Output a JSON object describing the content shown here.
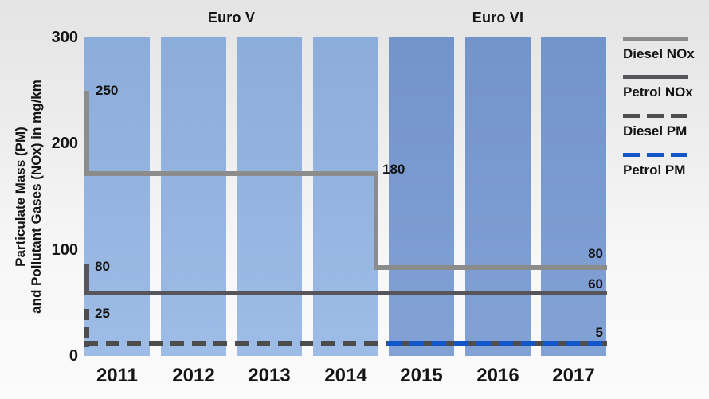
{
  "era_titles": {
    "euro_v": "Euro V",
    "euro_vi": "Euro VI"
  },
  "y_axis": {
    "label_line1": "Particulate Mass (PM)",
    "label_line2": "and Pollutant Gases (NOx) in mg/km",
    "ticks": [
      "300",
      "200",
      "100",
      "0"
    ]
  },
  "x_axis": {
    "years": [
      "2011",
      "2012",
      "2013",
      "2014",
      "2015",
      "2016",
      "2017"
    ]
  },
  "annotations": {
    "diesel_nox_pre": "250",
    "diesel_nox_euro5": "180",
    "diesel_nox_euro6": "80",
    "petrol_nox_pre": "80",
    "petrol_nox_limit": "60",
    "diesel_pm_pre": "25",
    "pm_limit": "5"
  },
  "legend": {
    "items": [
      {
        "label": "Diesel NOx",
        "color": "#8c8c8c",
        "style": "solid"
      },
      {
        "label": "Petrol NOx",
        "color": "#56565a",
        "style": "solid"
      },
      {
        "label": "Diesel PM",
        "color": "#4d4d4d",
        "style": "dashed"
      },
      {
        "label": "Petrol PM",
        "color": "#1256c8",
        "style": "dashed"
      }
    ]
  },
  "colors": {
    "euro5_bar": "#8fb0dd",
    "euro6_bar": "#7697cd",
    "diesel_nox_line": "#8c8c8c",
    "petrol_nox_line": "#56565a",
    "diesel_pm_line": "#4d4d4d",
    "petrol_pm_line": "#1256c8",
    "background_top": "#e4e4e4",
    "background_bottom": "#fbfbfb"
  },
  "chart_data": {
    "type": "line",
    "subtype": "stepped-limit-lines-over-era-bars",
    "title": "",
    "xlabel": "",
    "ylabel": "Particulate Mass (PM) and Pollutant Gases (NOx) in mg/km",
    "unit": "mg/km",
    "categories": [
      "2011",
      "2012",
      "2013",
      "2014",
      "2015",
      "2016",
      "2017"
    ],
    "eras": [
      {
        "label": "Euro V",
        "years": [
          "2011",
          "2012",
          "2013",
          "2014"
        ],
        "bar_color": "#8fb0dd"
      },
      {
        "label": "Euro VI",
        "years": [
          "2015",
          "2016",
          "2017"
        ],
        "bar_color": "#7697cd"
      }
    ],
    "ylim": [
      0,
      300
    ],
    "yticks": [
      0,
      100,
      200,
      300
    ],
    "grid": false,
    "legend_position": "right",
    "series": [
      {
        "name": "Diesel NOx",
        "line_style": "solid",
        "color": "#8c8c8c",
        "segments": [
          {
            "period": "pre-2011 start",
            "value": 250
          },
          {
            "period": "2011-2014 (Euro V)",
            "value": 180
          },
          {
            "period": "2015-2017 (Euro VI)",
            "value": 80
          }
        ],
        "annotated_values": [
          250,
          180,
          80
        ]
      },
      {
        "name": "Petrol NOx",
        "line_style": "solid",
        "color": "#56565a",
        "segments": [
          {
            "period": "pre-2011 start",
            "value": 80
          },
          {
            "period": "2011-2017",
            "value": 60
          }
        ],
        "annotated_values": [
          80,
          60
        ]
      },
      {
        "name": "Diesel PM",
        "line_style": "dashed",
        "color": "#4d4d4d",
        "segments": [
          {
            "period": "pre-2011 start",
            "value": 25
          },
          {
            "period": "2011-2017",
            "value": 5
          }
        ],
        "annotated_values": [
          25,
          5
        ]
      },
      {
        "name": "Petrol PM",
        "line_style": "dashed",
        "color": "#1256c8",
        "segments": [
          {
            "period": "2015-2017 (Euro VI)",
            "value": 5
          }
        ],
        "annotated_values": [
          5
        ]
      }
    ]
  }
}
